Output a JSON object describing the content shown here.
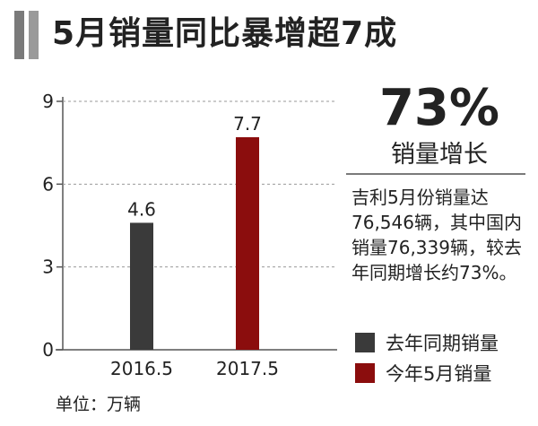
{
  "title": "5月销量同比暴增超7成",
  "highlight": {
    "value": "73%",
    "label": "销量增长"
  },
  "description": "吉利5月份销量达76,546辆，其中国内销量76,339辆，较去年同期增长约73%。",
  "unit_label": "单位：万辆",
  "colors": {
    "last_year": "#3a3a3a",
    "this_year": "#8b0d0d",
    "header_bar": "#7a7a7a"
  },
  "chart_data": {
    "type": "bar",
    "title": "",
    "categories": [
      "2016.5",
      "2017.5"
    ],
    "values": [
      4.6,
      7.7
    ],
    "ylim": [
      0,
      9
    ],
    "yticks": [
      0,
      3,
      6,
      9
    ],
    "grid": true,
    "legend": [
      {
        "name": "去年同期销量",
        "color": "#3a3a3a"
      },
      {
        "name": "今年5月销量",
        "color": "#8b0d0d"
      }
    ]
  }
}
